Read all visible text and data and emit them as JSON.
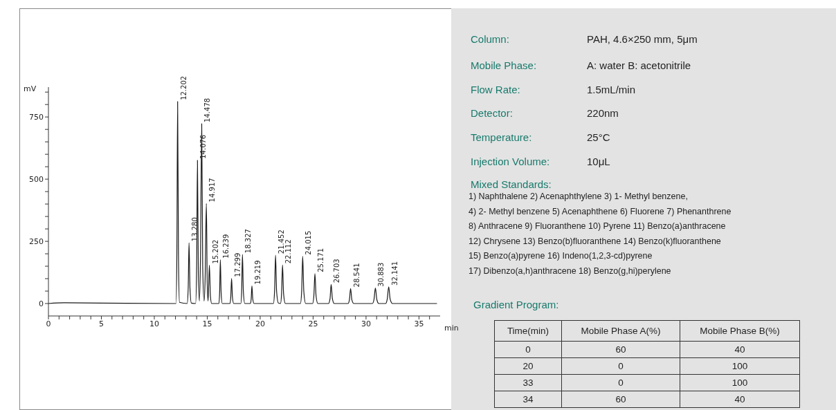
{
  "chart_data": [
    {
      "type": "line",
      "xlabel": "min",
      "ylabel": "mV",
      "color": "#1a1a1a",
      "xlim": [
        0,
        37
      ],
      "ylim": [
        -50,
        870
      ],
      "xticks": [
        0,
        {
          "value": 1,
          "label": null
        },
        {
          "value": 2,
          "label": null
        },
        {
          "value": 3,
          "label": null
        },
        {
          "value": 4,
          "label": null
        },
        5,
        {
          "value": 6,
          "label": null
        },
        {
          "value": 7,
          "label": null
        },
        {
          "value": 8,
          "label": null
        },
        {
          "value": 9,
          "label": null
        },
        10,
        {
          "value": 11,
          "label": null
        },
        {
          "value": 12,
          "label": null
        },
        {
          "value": 13,
          "label": null
        },
        {
          "value": 14,
          "label": null
        },
        15,
        {
          "value": 16,
          "label": null
        },
        {
          "value": 17,
          "label": null
        },
        {
          "value": 18,
          "label": null
        },
        {
          "value": 19,
          "label": null
        },
        20,
        {
          "value": 21,
          "label": null
        },
        {
          "value": 22,
          "label": null
        },
        {
          "value": 23,
          "label": null
        },
        {
          "value": 24,
          "label": null
        },
        25,
        {
          "value": 26,
          "label": null
        },
        {
          "value": 27,
          "label": null
        },
        {
          "value": 28,
          "label": null
        },
        {
          "value": 29,
          "label": null
        },
        30,
        {
          "value": 31,
          "label": null
        },
        {
          "value": 32,
          "label": null
        },
        {
          "value": 33,
          "label": null
        },
        {
          "value": 34,
          "label": null
        },
        35,
        {
          "value": 36,
          "label": null
        }
      ],
      "yticks": [
        0,
        {
          "value": 50,
          "label": null
        },
        {
          "value": 100,
          "label": null
        },
        {
          "value": 150,
          "label": null
        },
        {
          "value": 200,
          "label": null
        },
        250,
        {
          "value": 300,
          "label": null
        },
        {
          "value": 350,
          "label": null
        },
        {
          "value": 400,
          "label": null
        },
        {
          "value": 450,
          "label": null
        },
        500,
        {
          "value": 550,
          "label": null
        },
        {
          "value": 600,
          "label": null
        },
        {
          "value": 650,
          "label": null
        },
        {
          "value": 700,
          "label": null
        },
        750,
        {
          "value": 800,
          "label": null
        },
        {
          "value": 850,
          "label": null
        }
      ],
      "x": [
        0,
        1.5,
        5,
        11.9,
        12.05,
        12.13,
        12.202,
        12.28,
        12.38,
        13.1,
        13.2,
        13.28,
        13.37,
        13.5,
        13.9,
        14.0,
        14.076,
        14.16,
        14.26,
        14.36,
        14.478,
        14.57,
        14.7,
        14.8,
        14.917,
        15.0,
        15.08,
        15.202,
        15.3,
        15.42,
        16.1,
        16.17,
        16.239,
        16.31,
        16.42,
        17.15,
        17.22,
        17.299,
        17.38,
        17.5,
        18.17,
        18.25,
        18.327,
        18.41,
        18.55,
        19.08,
        19.15,
        19.219,
        19.3,
        19.42,
        21.25,
        21.36,
        21.452,
        21.55,
        21.72,
        21.92,
        22.02,
        22.112,
        22.21,
        22.38,
        23.8,
        23.92,
        24.015,
        24.12,
        24.3,
        24.95,
        25.07,
        25.171,
        25.28,
        25.45,
        26.45,
        26.6,
        26.703,
        26.82,
        27.0,
        28.3,
        28.43,
        28.541,
        28.66,
        28.85,
        30.6,
        30.75,
        30.883,
        31.02,
        31.2,
        31.85,
        32.0,
        32.141,
        32.28,
        32.5,
        36.7
      ],
      "values": [
        0,
        3,
        2,
        0,
        0,
        200,
        812,
        200,
        5,
        0,
        60,
        244,
        60,
        2,
        0,
        150,
        576,
        120,
        10,
        180,
        723,
        150,
        10,
        100,
        402,
        80,
        10,
        154,
        30,
        0,
        0,
        45,
        176,
        45,
        0,
        0,
        25,
        101,
        25,
        0,
        0,
        50,
        197,
        50,
        0,
        0,
        18,
        71,
        18,
        0,
        0,
        50,
        194,
        50,
        2,
        0,
        40,
        155,
        40,
        0,
        0,
        50,
        190,
        50,
        0,
        0,
        30,
        120,
        30,
        0,
        0,
        20,
        77,
        20,
        0,
        0,
        15,
        60,
        15,
        0,
        0,
        16,
        62,
        16,
        0,
        0,
        17,
        67,
        17,
        0,
        0
      ],
      "annotations": [
        {
          "text": "12.202",
          "x": 12.202,
          "y": 812
        },
        {
          "text": "13.280",
          "x": 13.28,
          "y": 244
        },
        {
          "text": "14.076",
          "x": 14.076,
          "y": 576
        },
        {
          "text": "14.478",
          "x": 14.478,
          "y": 723
        },
        {
          "text": "14.917",
          "x": 14.917,
          "y": 402
        },
        {
          "text": "15.202",
          "x": 15.202,
          "y": 154
        },
        {
          "text": "16.239",
          "x": 16.239,
          "y": 176
        },
        {
          "text": "17.299",
          "x": 17.299,
          "y": 101
        },
        {
          "text": "18.327",
          "x": 18.327,
          "y": 197
        },
        {
          "text": "19.219",
          "x": 19.219,
          "y": 71
        },
        {
          "text": "21.452",
          "x": 21.452,
          "y": 194
        },
        {
          "text": "22.112",
          "x": 22.112,
          "y": 155
        },
        {
          "text": "24.015",
          "x": 24.015,
          "y": 190
        },
        {
          "text": "25.171",
          "x": 25.171,
          "y": 120
        },
        {
          "text": "26.703",
          "x": 26.703,
          "y": 77
        },
        {
          "text": "28.541",
          "x": 28.541,
          "y": 60
        },
        {
          "text": "30.883",
          "x": 30.883,
          "y": 62
        },
        {
          "text": "32.141",
          "x": 32.141,
          "y": 67
        }
      ]
    },
    {
      "type": "other",
      "annotations": [
        "Column:",
        "PAH, 4.6×250 mm, 5μm",
        "Mobile Phase:",
        "A: water B: acetonitrile",
        "Flow Rate:",
        "1.5mL/min",
        "Detector:",
        "220nm",
        "Temperature:",
        "25°C",
        "Injection Volume:",
        "10μL",
        "Mixed Standards:",
        "1) Naphthalene 2) Acenaphthylene 3) 1- Methyl benzene,",
        "4) 2- Methyl benzene 5) Acenaphthene 6) Fluorene 7) Phenanthrene",
        "8) Anthracene 9) Fluoranthene 10) Pyrene 11) Benzo(a)anthracene",
        "12) Chrysene 13) Benzo(b)fluoranthene 14) Benzo(k)fluoranthene",
        "15) Benzo(a)pyrene 16) Indeno(1,2,3-cd)pyrene",
        "17) Dibenzo(a,h)anthracene 18) Benzo(g,hi)perylene",
        "Gradient Program:",
        "Time(min)",
        "Mobile Phase A(%)",
        "Mobile Phase B(%)",
        "0",
        "60",
        "40",
        "20",
        "0",
        "100",
        "33",
        "0",
        "100",
        "34",
        "60",
        "40"
      ]
    }
  ]
}
